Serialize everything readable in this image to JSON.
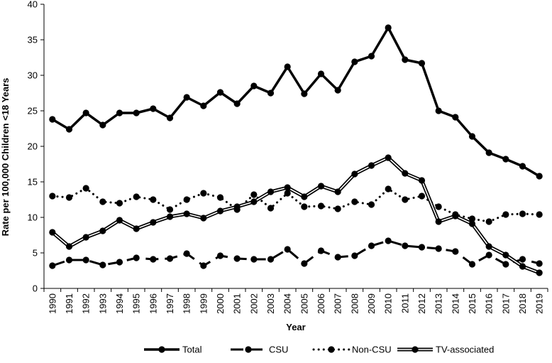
{
  "chart_data": {
    "type": "line",
    "xlabel": "Year",
    "ylabel": "Rate per 100,000 Children <18 Years",
    "ylim": [
      0,
      40
    ],
    "yticks": [
      0,
      5,
      10,
      15,
      20,
      25,
      30,
      35,
      40
    ],
    "x": [
      "1990",
      "1991",
      "1992",
      "1993",
      "1994",
      "1995",
      "1996",
      "1997",
      "1998",
      "1999",
      "2000",
      "2001",
      "2002",
      "2003",
      "2004",
      "2005",
      "2006",
      "2007",
      "2008",
      "2009",
      "2010",
      "2011",
      "2012",
      "2013",
      "2014",
      "2015",
      "2016",
      "2017",
      "2018",
      "2019"
    ],
    "grid": false,
    "legend_position": "bottom",
    "series": [
      {
        "name": "Total",
        "style": "solid-thick",
        "color": "#000000",
        "values": [
          23.8,
          22.4,
          24.7,
          23.0,
          24.7,
          24.7,
          25.3,
          24.0,
          26.9,
          25.7,
          27.6,
          26.0,
          28.5,
          27.5,
          31.2,
          27.4,
          30.2,
          27.9,
          31.9,
          32.7,
          36.7,
          32.2,
          31.7,
          25.0,
          24.1,
          21.4,
          19.1,
          18.2,
          17.2,
          15.8
        ]
      },
      {
        "name": "CSU",
        "style": "dashed",
        "color": "#000000",
        "values": [
          3.2,
          4.0,
          4.0,
          3.3,
          3.7,
          4.3,
          4.1,
          4.2,
          4.9,
          3.2,
          4.6,
          4.2,
          4.1,
          4.1,
          5.5,
          3.5,
          5.3,
          4.4,
          4.6,
          6.0,
          6.7,
          6.0,
          5.8,
          5.6,
          5.2,
          3.4,
          4.7,
          3.4,
          4.1,
          3.5
        ]
      },
      {
        "name": "Non-CSU",
        "style": "dotted",
        "color": "#000000",
        "values": [
          13.0,
          12.8,
          14.1,
          12.2,
          12.0,
          12.9,
          12.5,
          11.1,
          12.5,
          13.4,
          12.8,
          11.1,
          13.2,
          11.3,
          13.4,
          11.5,
          11.6,
          11.2,
          12.2,
          11.8,
          14.0,
          12.5,
          13.0,
          11.5,
          10.4,
          9.8,
          9.4,
          10.4,
          10.5,
          10.4
        ]
      },
      {
        "name": "TV-associated",
        "style": "double",
        "color": "#000000",
        "values": [
          7.9,
          5.9,
          7.2,
          8.1,
          9.6,
          8.4,
          9.3,
          10.1,
          10.5,
          9.9,
          10.9,
          11.5,
          12.2,
          13.6,
          14.2,
          12.9,
          14.4,
          13.6,
          16.1,
          17.3,
          18.4,
          16.2,
          15.2,
          9.4,
          10.2,
          9.1,
          5.9,
          4.7,
          3.1,
          2.2
        ]
      }
    ]
  }
}
